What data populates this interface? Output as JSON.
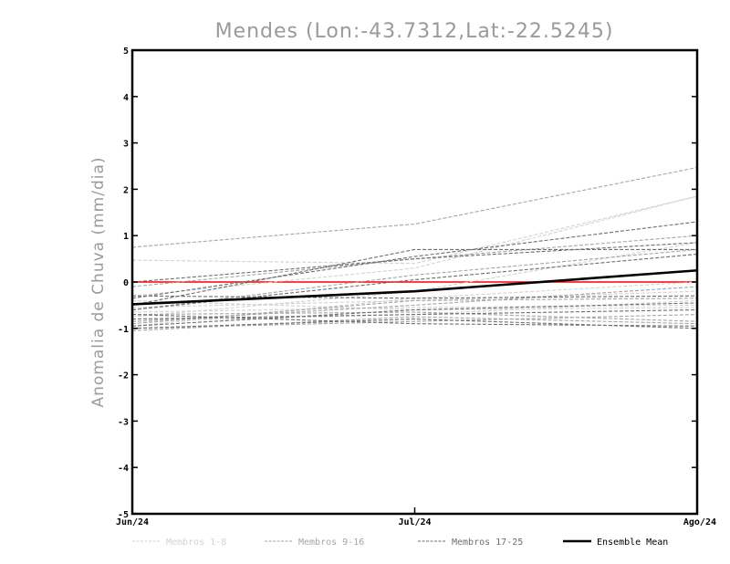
{
  "chart_data": {
    "type": "line",
    "title": "Mendes (Lon:-43.7312,Lat:-22.5245)",
    "xlabel": "",
    "ylabel": "Anomalia de Chuva (mm/dia)",
    "categories": [
      "Jun/24",
      "Jul/24",
      "Ago/24"
    ],
    "ylim": [
      -5,
      5
    ],
    "yticks": [
      "5",
      "4",
      "3",
      "2",
      "1",
      "0",
      "-1",
      "-2",
      "-3",
      "-4",
      "-5"
    ],
    "grid": false,
    "legend_position": "bottom",
    "reference_line": {
      "y": 0,
      "color": "#ff0000"
    },
    "legend": [
      {
        "label": "Membros 1-8",
        "color": "#d2d2d2",
        "dashed": true
      },
      {
        "label": "Membros 9-16",
        "color": "#a5a5a5",
        "dashed": true
      },
      {
        "label": "Membros 17-25",
        "color": "#6e6e6e",
        "dashed": true
      },
      {
        "label": "Ensemble Mean",
        "color": "#000000",
        "dashed": false
      }
    ],
    "series": [
      {
        "group": 1,
        "values": [
          0.47,
          0.4,
          1.85
        ]
      },
      {
        "group": 1,
        "values": [
          -0.3,
          0.3,
          1.85
        ]
      },
      {
        "group": 1,
        "values": [
          -0.75,
          -0.2,
          0.85
        ]
      },
      {
        "group": 1,
        "values": [
          -0.55,
          -0.4,
          -0.2
        ]
      },
      {
        "group": 1,
        "values": [
          -0.65,
          -0.55,
          -0.5
        ]
      },
      {
        "group": 1,
        "values": [
          -0.85,
          -0.7,
          -0.4
        ]
      },
      {
        "group": 1,
        "values": [
          -0.95,
          -0.35,
          0.0
        ]
      },
      {
        "group": 1,
        "values": [
          -0.4,
          -0.6,
          -0.55
        ]
      },
      {
        "group": 2,
        "values": [
          0.75,
          1.25,
          2.47
        ]
      },
      {
        "group": 2,
        "values": [
          -0.1,
          0.5,
          1.0
        ]
      },
      {
        "group": 2,
        "values": [
          -0.6,
          0.15,
          0.7
        ]
      },
      {
        "group": 2,
        "values": [
          -0.9,
          -0.4,
          -0.35
        ]
      },
      {
        "group": 2,
        "values": [
          -1.0,
          -0.85,
          -0.7
        ]
      },
      {
        "group": 2,
        "values": [
          -0.7,
          -0.65,
          -0.85
        ]
      },
      {
        "group": 2,
        "values": [
          -0.85,
          -0.5,
          -0.1
        ]
      },
      {
        "group": 2,
        "values": [
          -1.05,
          -0.75,
          -0.9
        ]
      },
      {
        "group": 3,
        "values": [
          -0.5,
          0.7,
          0.7
        ]
      },
      {
        "group": 3,
        "values": [
          -0.35,
          0.55,
          1.3
        ]
      },
      {
        "group": 3,
        "values": [
          0.0,
          0.5,
          0.85
        ]
      },
      {
        "group": 3,
        "values": [
          -0.6,
          0.05,
          0.6
        ]
      },
      {
        "group": 3,
        "values": [
          -0.3,
          -0.35,
          -0.3
        ]
      },
      {
        "group": 3,
        "values": [
          -0.95,
          -0.6,
          -0.45
        ]
      },
      {
        "group": 3,
        "values": [
          -1.0,
          -0.8,
          -1.0
        ]
      },
      {
        "group": 3,
        "values": [
          -0.7,
          -0.9,
          -0.95
        ]
      },
      {
        "group": 3,
        "values": [
          -0.8,
          -0.7,
          -0.6
        ]
      },
      {
        "group": 4,
        "name": "Ensemble Mean",
        "values": [
          -0.48,
          -0.2,
          0.25
        ]
      }
    ]
  }
}
